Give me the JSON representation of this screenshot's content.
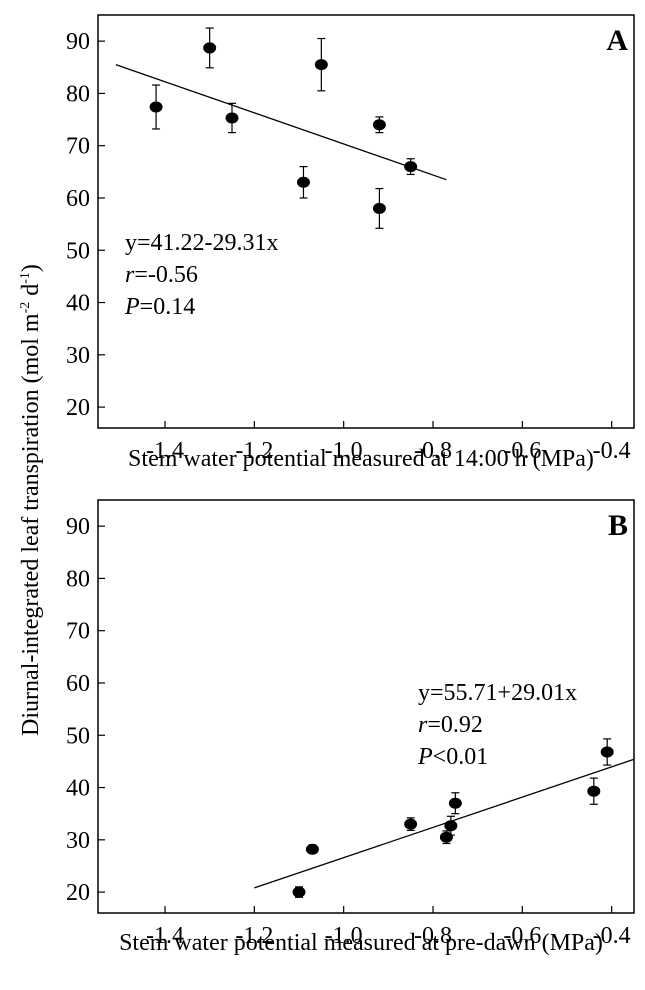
{
  "figure": {
    "ylabel": "Diurnal-integrated leaf transpiration (mol m",
    "ylabel_sup1": "-2",
    "ylabel_mid": " d",
    "ylabel_sup2": "-1",
    "ylabel_end": ")"
  },
  "chart_data": [
    {
      "type": "scatter",
      "panel": "A",
      "xlabel": "Stem water potential measured at 14:00 h (MPa)",
      "xlim": [
        -1.55,
        -0.35
      ],
      "ylim": [
        16,
        95
      ],
      "xticks": [
        -1.4,
        -1.2,
        -1.0,
        -0.8,
        -0.6,
        -0.4
      ],
      "xtick_labels": [
        "-1.4",
        "-1.2",
        "-1.0",
        "-0.8",
        "-0.6",
        "-0.4"
      ],
      "yticks": [
        20,
        30,
        40,
        50,
        60,
        70,
        80,
        90
      ],
      "ytick_labels": [
        "20",
        "30",
        "40",
        "50",
        "60",
        "70",
        "80",
        "90"
      ],
      "points": [
        {
          "x": -1.42,
          "y": 77.4,
          "err": 4.2
        },
        {
          "x": -1.3,
          "y": 88.7,
          "err": 3.8
        },
        {
          "x": -1.25,
          "y": 75.3,
          "err": 2.8
        },
        {
          "x": -1.09,
          "y": 63.0,
          "err": 3.0
        },
        {
          "x": -1.05,
          "y": 85.5,
          "err": 5.0
        },
        {
          "x": -0.92,
          "y": 74.0,
          "err": 1.5
        },
        {
          "x": -0.92,
          "y": 58.0,
          "err": 3.8
        },
        {
          "x": -0.85,
          "y": 66.0,
          "err": 1.5
        }
      ],
      "fit": {
        "x": [
          -1.51,
          -0.77
        ],
        "y": [
          85.5,
          63.5
        ]
      },
      "equation": "y=41.22-29.31x",
      "r_label": "r",
      "r_value": "=-0.56",
      "p_label": "P",
      "p_value": "=0.14",
      "grid": false
    },
    {
      "type": "scatter",
      "panel": "B",
      "xlabel": "Stem water potential measured at pre-dawn (MPa)",
      "xlim": [
        -1.55,
        -0.35
      ],
      "ylim": [
        16,
        95
      ],
      "xticks": [
        -1.4,
        -1.2,
        -1.0,
        -0.8,
        -0.6,
        -0.4
      ],
      "xtick_labels": [
        "-1.4",
        "-1.2",
        "-1.0",
        "-0.8",
        "-0.6",
        "-0.4"
      ],
      "yticks": [
        20,
        30,
        40,
        50,
        60,
        70,
        80,
        90
      ],
      "ytick_labels": [
        "20",
        "30",
        "40",
        "50",
        "60",
        "70",
        "80",
        "90"
      ],
      "points": [
        {
          "x": -1.1,
          "y": 20.0,
          "err": 1.0
        },
        {
          "x": -1.07,
          "y": 28.2,
          "err": 0.8
        },
        {
          "x": -0.85,
          "y": 33.0,
          "err": 1.2
        },
        {
          "x": -0.77,
          "y": 30.5,
          "err": 1.2
        },
        {
          "x": -0.76,
          "y": 32.7,
          "err": 1.8
        },
        {
          "x": -0.75,
          "y": 37.0,
          "err": 2.0
        },
        {
          "x": -0.44,
          "y": 39.3,
          "err": 2.5
        },
        {
          "x": -0.41,
          "y": 46.8,
          "err": 2.5
        }
      ],
      "fit": {
        "x": [
          -1.2,
          -0.35
        ],
        "y": [
          20.8,
          45.4
        ]
      },
      "equation": "y=55.71+29.01x",
      "r_label": "r",
      "r_value": "=0.92",
      "p_label": "P",
      "p_value": "<0.01",
      "grid": false
    }
  ]
}
